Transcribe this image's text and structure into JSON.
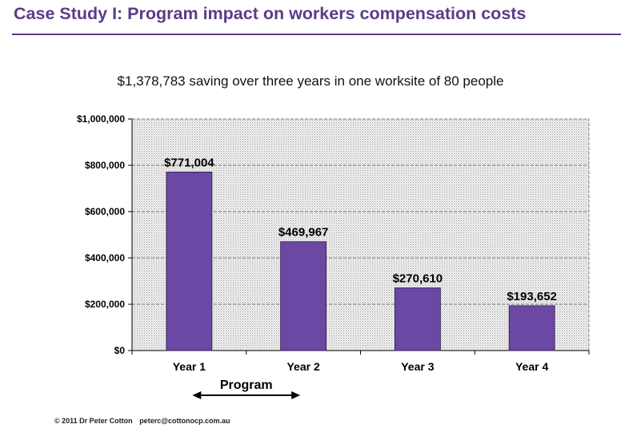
{
  "slide": {
    "title": "Case Study I: Program impact on workers compensation costs",
    "footer_copyright": "© 2011 Dr Peter Cotton",
    "footer_email": "peterc@cottonocp.com.au"
  },
  "colors": {
    "title": "#5b3c87",
    "bar": "#6a48a4",
    "plot_background": "#eeeeee"
  },
  "chart_data": {
    "type": "bar",
    "title": "$1,378,783 saving over three years in one worksite of 80 people",
    "categories": [
      "Year 1",
      "Year 2",
      "Year 3",
      "Year 4"
    ],
    "values": [
      771004,
      469967,
      270610,
      193652
    ],
    "data_labels": [
      "$771,004",
      "$469,967",
      "$270,610",
      "$193,652"
    ],
    "ylim": [
      0,
      1000000
    ],
    "yticks": [
      0,
      200000,
      400000,
      600000,
      800000,
      1000000
    ],
    "ytick_labels": [
      "$0",
      "$200,000",
      "$400,000",
      "$600,000",
      "$800,000",
      "$1,000,000"
    ],
    "xlabel": "",
    "ylabel": "",
    "grid": true,
    "legend": "none",
    "annotation": {
      "text": "Program",
      "spans_categories": [
        "Year 1",
        "Year 2"
      ]
    }
  }
}
